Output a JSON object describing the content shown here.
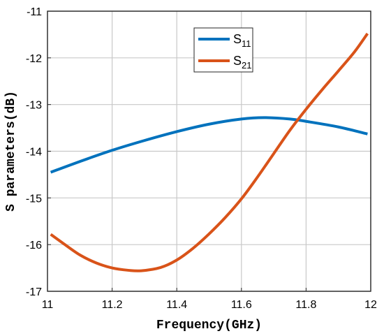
{
  "chart_data": {
    "type": "line",
    "xlabel": "Frequency(GHz)",
    "ylabel": "S parameters(dB)",
    "xlim": [
      11,
      12
    ],
    "ylim": [
      -17,
      -11
    ],
    "xticks": [
      "11",
      "11.2",
      "11.4",
      "11.6",
      "11.8",
      "12"
    ],
    "yticks": [
      "-11",
      "-12",
      "-13",
      "-14",
      "-15",
      "-16",
      "-17"
    ],
    "grid": true,
    "legend": "top-center",
    "series": [
      {
        "name": "S11",
        "label_base": "S",
        "label_sub": "11",
        "color": "#0072BD",
        "x": [
          11.01,
          11.1,
          11.2,
          11.3,
          11.4,
          11.5,
          11.6,
          11.67,
          11.75,
          11.8,
          11.9,
          11.99
        ],
        "y": [
          -14.45,
          -14.22,
          -13.98,
          -13.77,
          -13.58,
          -13.42,
          -13.31,
          -13.28,
          -13.31,
          -13.36,
          -13.48,
          -13.63
        ]
      },
      {
        "name": "S21",
        "label_base": "S",
        "label_sub": "21",
        "color": "#D95319",
        "x": [
          11.01,
          11.05,
          11.1,
          11.15,
          11.2,
          11.25,
          11.29,
          11.35,
          11.4,
          11.45,
          11.5,
          11.55,
          11.6,
          11.65,
          11.7,
          11.75,
          11.8,
          11.85,
          11.9,
          11.95,
          11.99
        ],
        "y": [
          -15.78,
          -15.98,
          -16.22,
          -16.39,
          -16.5,
          -16.55,
          -16.56,
          -16.49,
          -16.33,
          -16.08,
          -15.77,
          -15.42,
          -15.02,
          -14.55,
          -14.05,
          -13.55,
          -13.1,
          -12.68,
          -12.28,
          -11.87,
          -11.48
        ]
      }
    ]
  }
}
